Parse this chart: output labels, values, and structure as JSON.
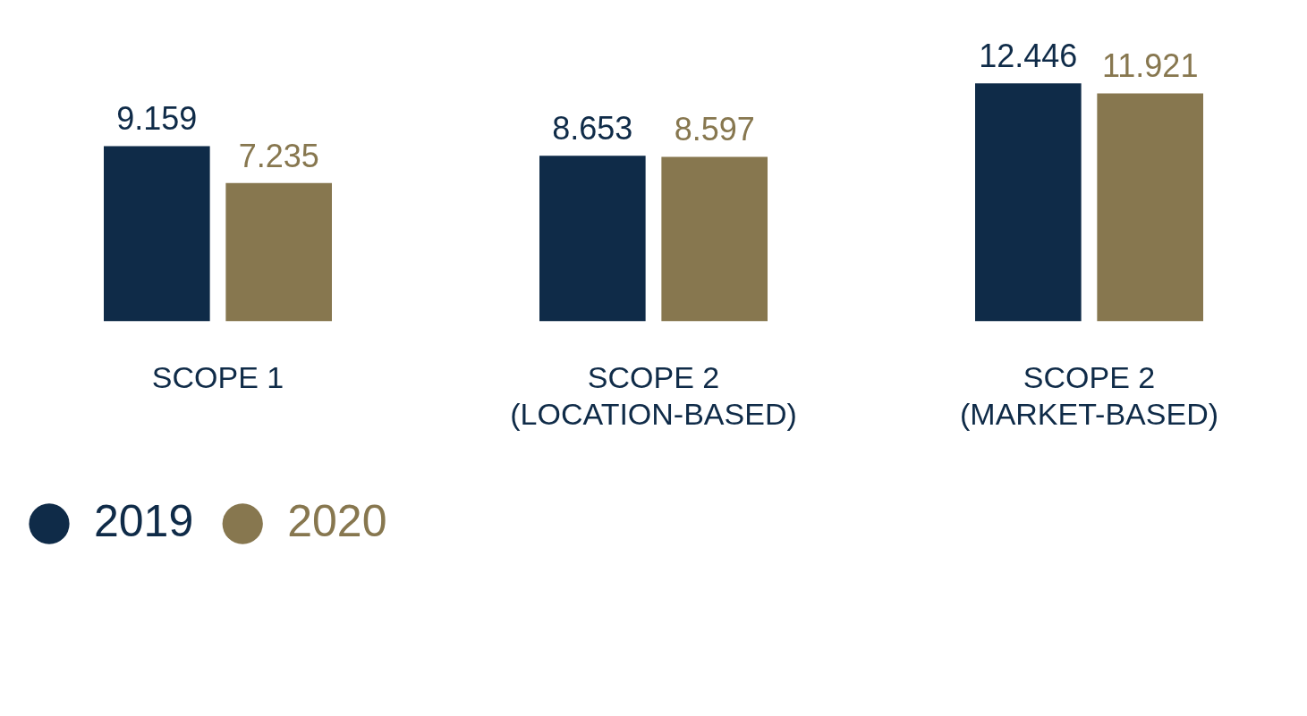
{
  "chart_data": {
    "type": "bar",
    "categories": [
      "SCOPE 1",
      "SCOPE 2 (LOCATION-BASED)",
      "SCOPE 2 (MARKET-BASED)"
    ],
    "series": [
      {
        "name": "2019",
        "color": "#0f2b48",
        "values": [
          9.159,
          8.653,
          12.446
        ]
      },
      {
        "name": "2020",
        "color": "#87774f",
        "values": [
          7.235,
          8.597,
          11.921
        ]
      }
    ],
    "data_labels": true,
    "legend": "bottom left",
    "grid": false
  }
}
